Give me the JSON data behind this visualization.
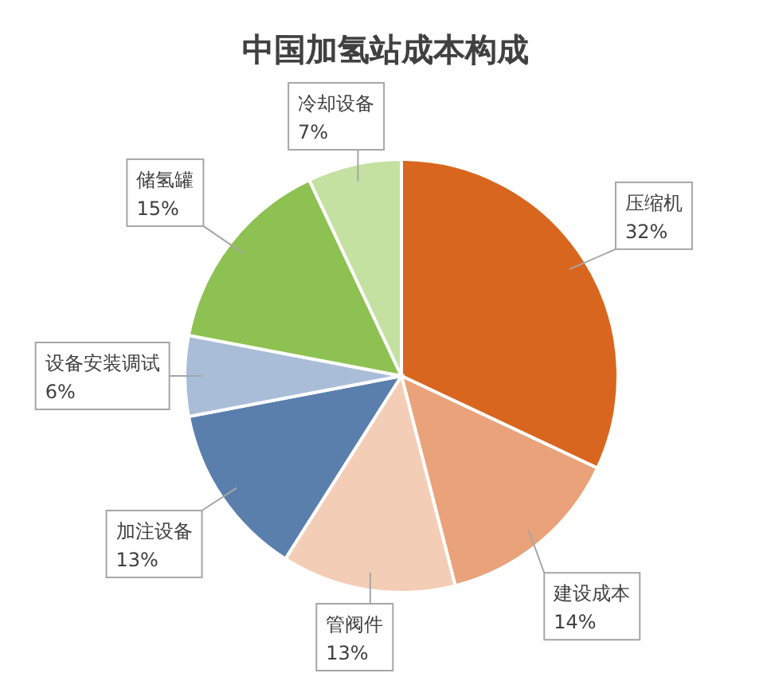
{
  "chart_data": {
    "type": "pie",
    "title": "中国加氢站成本构成",
    "categories": [
      "压缩机",
      "建设成本",
      "管阀件",
      "加注设备",
      "设备安装调试",
      "储氢罐",
      "冷却设备"
    ],
    "values": [
      32,
      14,
      13,
      13,
      6,
      15,
      7
    ],
    "value_labels": [
      "32%",
      "14%",
      "13%",
      "13%",
      "6%",
      "15%",
      "7%"
    ],
    "colors": [
      "#d9661f",
      "#e9a27a",
      "#f4cdb6",
      "#5a7fad",
      "#a9bdd8",
      "#8dc151",
      "#c4e1a1"
    ]
  }
}
